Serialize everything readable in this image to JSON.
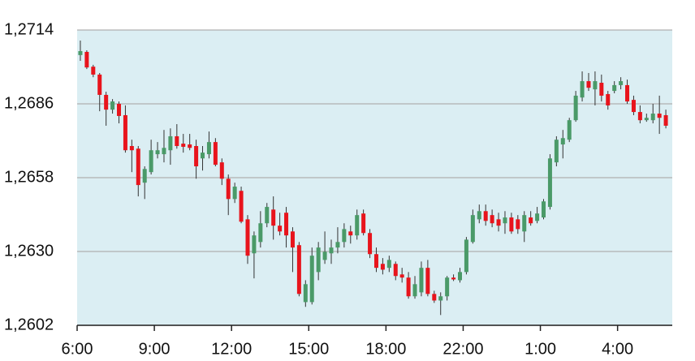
{
  "chart_data": {
    "type": "candlestick",
    "up_color": "#4a9a68",
    "down_color": "#e8141c",
    "plot_background": "#dbeef3",
    "grid": true,
    "xlim": [
      0,
      92.5
    ],
    "xticks": [
      {
        "value": 0,
        "label": "6:00"
      },
      {
        "value": 12,
        "label": "9:00"
      },
      {
        "value": 24,
        "label": "12:00"
      },
      {
        "value": 36,
        "label": "15:00"
      },
      {
        "value": 48,
        "label": "18:00"
      },
      {
        "value": 60,
        "label": "22:00"
      },
      {
        "value": 72,
        "label": "1:00"
      },
      {
        "value": 84,
        "label": "4:00"
      }
    ],
    "ylim": [
      1.2602,
      1.2714
    ],
    "yticks": [
      {
        "value": 1.2602,
        "label": "1,2602"
      },
      {
        "value": 1.263,
        "label": "1,2630"
      },
      {
        "value": 1.2658,
        "label": "1,2658"
      },
      {
        "value": 1.2686,
        "label": "1,2686"
      },
      {
        "value": 1.2714,
        "label": "1,2714"
      }
    ],
    "x": [
      0.5,
      1.5,
      2.5,
      3.5,
      4.5,
      5.5,
      6.5,
      7.5,
      8.5,
      9.5,
      10.5,
      11.5,
      12.5,
      13.5,
      14.5,
      15.5,
      16.5,
      17.5,
      18.5,
      19.5,
      20.5,
      21.5,
      22.5,
      23.5,
      24.5,
      25.5,
      26.5,
      27.5,
      28.5,
      29.5,
      30.5,
      31.5,
      32.5,
      33.5,
      34.5,
      35.5,
      36.5,
      37.5,
      38.5,
      39.5,
      40.5,
      41.5,
      42.5,
      43.5,
      44.5,
      45.5,
      46.5,
      47.5,
      48.5,
      49.5,
      50.5,
      51.5,
      52.5,
      53.5,
      54.5,
      55.5,
      56.5,
      57.5,
      58.5,
      59.5,
      60.5,
      61.5,
      62.5,
      63.5,
      64.5,
      65.5,
      66.5,
      67.5,
      68.5,
      69.5,
      70.5,
      71.5,
      72.5,
      73.5,
      74.5,
      75.5,
      76.5,
      77.5,
      78.5,
      79.5,
      80.5,
      81.5,
      82.5,
      83.5,
      84.5,
      85.5,
      86.5,
      87.5,
      88.5,
      89.5,
      90.5,
      91.5
    ],
    "open": [
      1.27045,
      1.27057,
      1.27001,
      1.26971,
      1.26894,
      1.26838,
      1.2686,
      1.26817,
      1.267,
      1.2669,
      1.26561,
      1.26601,
      1.26669,
      1.26669,
      1.26684,
      1.26737,
      1.26709,
      1.26706,
      1.267,
      1.26653,
      1.26669,
      1.26715,
      1.26638,
      1.26576,
      1.26499,
      1.2653,
      1.26422,
      1.26293,
      1.26336,
      1.26407,
      1.26459,
      1.26398,
      1.26447,
      1.26376,
      1.26324,
      1.26108,
      1.26108,
      1.26222,
      1.26268,
      1.26293,
      1.26315,
      1.26336,
      1.26376,
      1.26361,
      1.26444,
      1.2637,
      1.2629,
      1.26253,
      1.26238,
      1.26253,
      1.26213,
      1.26201,
      1.2613,
      1.26145,
      1.26238,
      1.26139,
      1.26114,
      1.2613,
      1.26201,
      1.26191,
      1.26222,
      1.26336,
      1.26422,
      1.26453,
      1.26438,
      1.26422,
      1.26407,
      1.26429,
      1.26422,
      1.26376,
      1.26429,
      1.26416,
      1.26429,
      1.26469,
      1.26638,
      1.26706,
      1.26724,
      1.26798,
      1.26884,
      1.26946,
      1.26915,
      1.2694,
      1.26897,
      1.26909,
      1.26931,
      1.26931,
      1.26875,
      1.26829,
      1.26798,
      1.26798,
      1.26823,
      1.26817
    ],
    "high": [
      1.271,
      1.27063,
      1.27008,
      1.26977,
      1.26906,
      1.26878,
      1.26869,
      1.26854,
      1.26724,
      1.267,
      1.26623,
      1.26724,
      1.26715,
      1.26761,
      1.26767,
      1.26783,
      1.26746,
      1.26746,
      1.26724,
      1.267,
      1.26755,
      1.2673,
      1.26653,
      1.26592,
      1.26561,
      1.26546,
      1.26438,
      1.26376,
      1.26453,
      1.26484,
      1.26509,
      1.26447,
      1.26469,
      1.26392,
      1.26336,
      1.26191,
      1.26315,
      1.26336,
      1.26376,
      1.26345,
      1.26392,
      1.26407,
      1.26398,
      1.26459,
      1.26459,
      1.26385,
      1.26315,
      1.26275,
      1.26284,
      1.26262,
      1.26238,
      1.26222,
      1.26207,
      1.26262,
      1.26268,
      1.26151,
      1.26145,
      1.26207,
      1.26213,
      1.26238,
      1.26355,
      1.26459,
      1.26478,
      1.26478,
      1.26459,
      1.26447,
      1.26453,
      1.26447,
      1.26438,
      1.26453,
      1.26453,
      1.26469,
      1.26499,
      1.26669,
      1.26737,
      1.26761,
      1.26807,
      1.26909,
      1.26983,
      1.26977,
      1.26983,
      1.26971,
      1.26909,
      1.26946,
      1.26961,
      1.26952,
      1.26891,
      1.26854,
      1.26823,
      1.2686,
      1.26891,
      1.26838
    ],
    "low": [
      1.27023,
      1.26992,
      1.26961,
      1.26832,
      1.26777,
      1.26823,
      1.26786,
      1.26675,
      1.26601,
      1.26509,
      1.26499,
      1.26592,
      1.26653,
      1.26638,
      1.26629,
      1.2669,
      1.26675,
      1.26684,
      1.26576,
      1.26607,
      1.26653,
      1.26623,
      1.26552,
      1.26438,
      1.26484,
      1.26407,
      1.26253,
      1.26198,
      1.26315,
      1.26392,
      1.26345,
      1.26361,
      1.26315,
      1.26222,
      1.2613,
      1.2609,
      1.26099,
      1.26191,
      1.26253,
      1.26253,
      1.26293,
      1.26315,
      1.2633,
      1.26345,
      1.26361,
      1.26275,
      1.26222,
      1.26213,
      1.26222,
      1.26191,
      1.26182,
      1.26121,
      1.26121,
      1.2613,
      1.2613,
      1.26105,
      1.26059,
      1.26114,
      1.26188,
      1.26182,
      1.26213,
      1.2633,
      1.26407,
      1.26398,
      1.26392,
      1.26376,
      1.26367,
      1.26367,
      1.26367,
      1.26336,
      1.26398,
      1.26407,
      1.26422,
      1.26459,
      1.26623,
      1.26653,
      1.26715,
      1.26792,
      1.26869,
      1.26909,
      1.26854,
      1.26869,
      1.26838,
      1.269,
      1.26915,
      1.2686,
      1.26817,
      1.26786,
      1.26792,
      1.26786,
      1.26746,
      1.26767
    ],
    "close": [
      1.2706,
      1.26998,
      1.26971,
      1.26894,
      1.26838,
      1.26869,
      1.26814,
      1.26684,
      1.26684,
      1.26552,
      1.26613,
      1.26684,
      1.26684,
      1.26693,
      1.26737,
      1.267,
      1.26697,
      1.26693,
      1.26623,
      1.26675,
      1.26715,
      1.26629,
      1.26576,
      1.26499,
      1.26546,
      1.26413,
      1.26284,
      1.26361,
      1.26407,
      1.26469,
      1.26398,
      1.26376,
      1.26361,
      1.26315,
      1.26139,
      1.26176,
      1.26284,
      1.26315,
      1.26299,
      1.26315,
      1.26336,
      1.26385,
      1.26361,
      1.26438,
      1.2637,
      1.2629,
      1.26238,
      1.26231,
      1.26268,
      1.26207,
      1.26201,
      1.2613,
      1.26176,
      1.26238,
      1.26139,
      1.26114,
      1.2613,
      1.26201,
      1.26194,
      1.26222,
      1.26345,
      1.26438,
      1.26453,
      1.26416,
      1.26407,
      1.26398,
      1.26429,
      1.26376,
      1.26385,
      1.26438,
      1.26407,
      1.26444,
      1.2649,
      1.26653,
      1.26724,
      1.2673,
      1.26798,
      1.26891,
      1.26946,
      1.26921,
      1.26946,
      1.26891,
      1.26854,
      1.26931,
      1.26946,
      1.26869,
      1.26829,
      1.26798,
      1.26807,
      1.26823,
      1.26807,
      1.26777
    ]
  }
}
